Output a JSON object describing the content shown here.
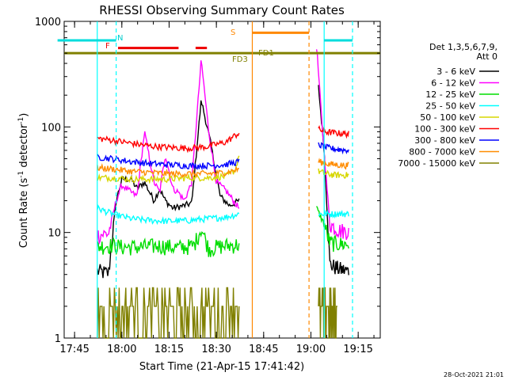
{
  "chart_data": {
    "type": "line",
    "title": "RHESSI Observing Summary Count Rates",
    "xlabel": "Start Time (21-Apr-15 17:41:42)",
    "ylabel_main": "Count Rate (s",
    "ylabel_sup": "-1",
    "ylabel_rest": " detector",
    "ylabel_sup2": "-1",
    "ylabel_end": ")",
    "yscale": "log",
    "ylim": [
      1,
      1000
    ],
    "xlim": [
      "17:41:42",
      "19:22:00"
    ],
    "x_ticks": [
      "17:45",
      "18:00",
      "18:15",
      "18:30",
      "18:45",
      "19:00",
      "19:15"
    ],
    "y_ticks": [
      {
        "value": 1,
        "label": "1"
      },
      {
        "value": 10,
        "label": "10"
      },
      {
        "value": 100,
        "label": "100"
      },
      {
        "value": 1000,
        "label": "1000"
      }
    ],
    "legend_header": [
      "Det 1,3,5,6,7,9,",
      "Att 0"
    ],
    "legend_position": "right",
    "timestamp": "28-Oct-2021 21:01",
    "series": [
      {
        "name": "3 - 6 keV",
        "color": "#000000",
        "seg1": [
          [
            17.87,
            4.3
          ],
          [
            17.93,
            4.1
          ],
          [
            17.97,
            20
          ],
          [
            18.0,
            32
          ],
          [
            18.05,
            32
          ],
          [
            18.08,
            26
          ],
          [
            18.12,
            30
          ],
          [
            18.17,
            20
          ],
          [
            18.2,
            26
          ],
          [
            18.23,
            20
          ],
          [
            18.27,
            17
          ],
          [
            18.33,
            18
          ],
          [
            18.37,
            19
          ],
          [
            18.42,
            180
          ],
          [
            18.47,
            70
          ],
          [
            18.52,
            22
          ],
          [
            18.57,
            18
          ],
          [
            18.62,
            20
          ]
        ],
        "seg2": [
          [
            19.04,
            240
          ],
          [
            19.07,
            60
          ],
          [
            19.1,
            5
          ],
          [
            19.15,
            4.5
          ],
          [
            19.2,
            4.3
          ]
        ]
      },
      {
        "name": "6 - 12 keV",
        "color": "#ff00ff",
        "seg1": [
          [
            17.87,
            9.5
          ],
          [
            17.93,
            9.8
          ],
          [
            17.97,
            20
          ],
          [
            18.0,
            28
          ],
          [
            18.05,
            24
          ],
          [
            18.08,
            22
          ],
          [
            18.12,
            90
          ],
          [
            18.17,
            30
          ],
          [
            18.2,
            24
          ],
          [
            18.23,
            55
          ],
          [
            18.27,
            26
          ],
          [
            18.3,
            24
          ],
          [
            18.33,
            20
          ],
          [
            18.37,
            30
          ],
          [
            18.42,
            430
          ],
          [
            18.46,
            90
          ],
          [
            18.5,
            30
          ],
          [
            18.55,
            25
          ],
          [
            18.62,
            17
          ]
        ],
        "seg2": [
          [
            19.03,
            580
          ],
          [
            19.06,
            100
          ],
          [
            19.1,
            12
          ],
          [
            19.15,
            10.5
          ],
          [
            19.2,
            10.3
          ]
        ]
      },
      {
        "name": "12 - 25 keV",
        "color": "#00dd00",
        "seg1": [
          [
            17.87,
            7.4
          ],
          [
            17.95,
            7.6
          ],
          [
            18.0,
            7.3
          ],
          [
            18.1,
            7.3
          ],
          [
            18.2,
            7.5
          ],
          [
            18.3,
            7.2
          ],
          [
            18.38,
            7.5
          ],
          [
            18.42,
            11
          ],
          [
            18.46,
            7.0
          ],
          [
            18.52,
            7.4
          ],
          [
            18.62,
            7.7
          ]
        ],
        "seg2": [
          [
            19.03,
            17
          ],
          [
            19.07,
            12
          ],
          [
            19.1,
            8.0
          ],
          [
            19.15,
            7.8
          ],
          [
            19.2,
            7.7
          ]
        ]
      },
      {
        "name": "25 - 50 keV",
        "color": "#00ffff",
        "seg1": [
          [
            17.87,
            17
          ],
          [
            17.95,
            15
          ],
          [
            18.05,
            13.5
          ],
          [
            18.15,
            13
          ],
          [
            18.25,
            12.8
          ],
          [
            18.35,
            13
          ],
          [
            18.45,
            13.5
          ],
          [
            18.55,
            14
          ],
          [
            18.62,
            15
          ]
        ],
        "seg2": [
          [
            19.04,
            15
          ],
          [
            19.1,
            15
          ],
          [
            19.15,
            15
          ],
          [
            19.2,
            15
          ]
        ]
      },
      {
        "name": "50 - 100 keV",
        "color": "#d7d700",
        "seg1": [
          [
            17.87,
            33
          ],
          [
            17.95,
            33
          ],
          [
            18.05,
            32
          ],
          [
            18.15,
            32
          ],
          [
            18.25,
            32
          ],
          [
            18.35,
            33
          ],
          [
            18.45,
            33
          ],
          [
            18.55,
            34
          ],
          [
            18.6,
            39
          ],
          [
            18.62,
            55
          ]
        ],
        "seg2": [
          [
            19.04,
            38
          ],
          [
            19.08,
            36
          ],
          [
            19.12,
            35
          ],
          [
            19.2,
            35
          ]
        ]
      },
      {
        "name": "100 - 300 keV",
        "color": "#ff0000",
        "seg1": [
          [
            17.87,
            78
          ],
          [
            17.95,
            75
          ],
          [
            18.05,
            70
          ],
          [
            18.15,
            66
          ],
          [
            18.25,
            64
          ],
          [
            18.35,
            63
          ],
          [
            18.45,
            65
          ],
          [
            18.55,
            72
          ],
          [
            18.62,
            88
          ]
        ],
        "seg2": [
          [
            19.04,
            95
          ],
          [
            19.08,
            90
          ],
          [
            19.12,
            88
          ],
          [
            19.2,
            86
          ]
        ]
      },
      {
        "name": "300 - 800 keV",
        "color": "#0000ff",
        "seg1": [
          [
            17.87,
            52
          ],
          [
            17.95,
            50
          ],
          [
            18.05,
            47
          ],
          [
            18.15,
            45
          ],
          [
            18.25,
            44
          ],
          [
            18.35,
            43
          ],
          [
            18.45,
            43
          ],
          [
            18.55,
            44
          ],
          [
            18.62,
            47
          ]
        ],
        "seg2": [
          [
            19.04,
            68
          ],
          [
            19.08,
            64
          ],
          [
            19.12,
            62
          ],
          [
            19.2,
            60
          ]
        ]
      },
      {
        "name": "800 - 7000 keV",
        "color": "#ff8c00",
        "seg1": [
          [
            17.87,
            41
          ],
          [
            17.95,
            40
          ],
          [
            18.05,
            38
          ],
          [
            18.15,
            37
          ],
          [
            18.25,
            36
          ],
          [
            18.35,
            36
          ],
          [
            18.45,
            36
          ],
          [
            18.55,
            37
          ],
          [
            18.62,
            40
          ]
        ],
        "seg2": [
          [
            19.04,
            47
          ],
          [
            19.08,
            45
          ],
          [
            19.12,
            44
          ],
          [
            19.2,
            43
          ]
        ]
      },
      {
        "name": "7000 - 15000 keV",
        "color": "#808000",
        "seg1": [
          [
            17.87,
            2.0
          ],
          [
            17.95,
            2.0
          ],
          [
            18.05,
            2.0
          ],
          [
            18.15,
            2.0
          ],
          [
            18.25,
            2.0
          ],
          [
            18.35,
            2.0
          ],
          [
            18.45,
            2.0
          ],
          [
            18.55,
            2.0
          ],
          [
            18.62,
            2.0
          ]
        ],
        "seg2": [
          [
            19.04,
            2.0
          ],
          [
            19.1,
            2.0
          ],
          [
            19.14,
            2.0
          ]
        ]
      }
    ],
    "flags": [
      {
        "label": "N",
        "color": "#00dddd",
        "segments": [
          [
            17.66,
            17.97
          ],
          [
            19.07,
            19.22
          ]
        ],
        "y": 660
      },
      {
        "label": "F",
        "color": "#ee0000",
        "segments": [
          [
            17.98,
            18.3
          ],
          [
            18.39,
            18.45
          ]
        ],
        "y": 560
      },
      {
        "label": "S",
        "color": "#ff8800",
        "segments": [
          [
            18.69,
            18.99
          ]
        ],
        "y": 780
      },
      {
        "label": "FD1",
        "color": "#808000",
        "segments": [],
        "y": 500
      },
      {
        "label": "FD3",
        "color": "#808000",
        "segments": [],
        "y": 455
      }
    ],
    "baseline_value": 500,
    "vlines": [
      {
        "x": 17.87,
        "color": "#00ffff",
        "style": "solid"
      },
      {
        "x": 17.97,
        "color": "#00ffff",
        "style": "dashed"
      },
      {
        "x": 18.69,
        "color": "#ff8800",
        "style": "solid"
      },
      {
        "x": 18.99,
        "color": "#ff8800",
        "style": "dashed"
      },
      {
        "x": 19.07,
        "color": "#00ffff",
        "style": "solid"
      },
      {
        "x": 19.22,
        "color": "#00ffff",
        "style": "dashed"
      }
    ]
  }
}
